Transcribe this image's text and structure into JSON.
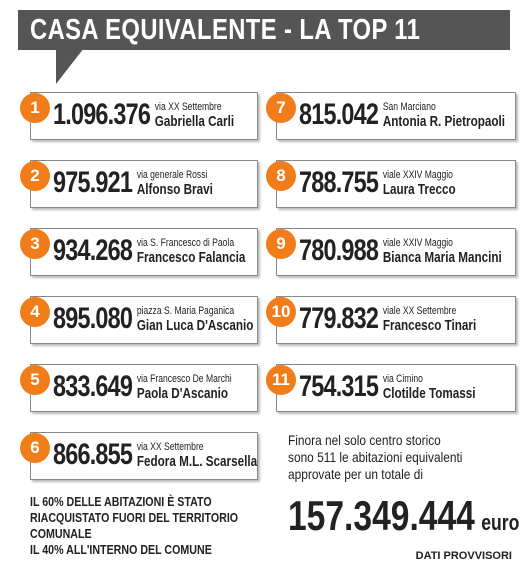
{
  "title": "CASA EQUIVALENTE - LA TOP 11",
  "entries": [
    {
      "rank": "1",
      "value": "1.096.376",
      "address": "via XX Settembre",
      "name": "Gabriella Carli"
    },
    {
      "rank": "2",
      "value": "975.921",
      "address": "via generale Rossi",
      "name": "Alfonso Bravi"
    },
    {
      "rank": "3",
      "value": "934.268",
      "address": "via S. Francesco di Paola",
      "name": "Francesco Falancia"
    },
    {
      "rank": "4",
      "value": "895.080",
      "address": "piazza S. Maria Paganica",
      "name": "Gian Luca D'Ascanio"
    },
    {
      "rank": "5",
      "value": "833.649",
      "address": "via Francesco De Marchi",
      "name": "Paola D'Ascanio"
    },
    {
      "rank": "6",
      "value": "866.855",
      "address": "via XX Settembre",
      "name": "Fedora M.L. Scarsella"
    },
    {
      "rank": "7",
      "value": "815.042",
      "address": "San Marciano",
      "name": "Antonia R. Pietropaoli"
    },
    {
      "rank": "8",
      "value": "788.755",
      "address": "viale XXIV Maggio",
      "name": "Laura Trecco"
    },
    {
      "rank": "9",
      "value": "780.988",
      "address": "viale XXIV Maggio",
      "name": "Bianca Maria Mancini"
    },
    {
      "rank": "10",
      "value": "779.832",
      "address": "viale XX Settembre",
      "name": "Francesco Tinari"
    },
    {
      "rank": "11",
      "value": "754.315",
      "address": "via Cimino",
      "name": "Clotilde Tomassi"
    }
  ],
  "note": {
    "lines": [
      "IL 60% DELLE ABITAZIONI È STATO",
      "RIACQUISTATO FUORI DEL TERRITORIO",
      "COMUNALE",
      "IL 40% ALL'INTERNO DEL COMUNE"
    ]
  },
  "summary": {
    "lines": [
      "Finora nel solo centro storico",
      "sono 511 le abitazioni equivalenti",
      "approvate per un totale di"
    ],
    "total": "157.349.444",
    "unit": "euro"
  },
  "source": "DATI PROVVISORI"
}
